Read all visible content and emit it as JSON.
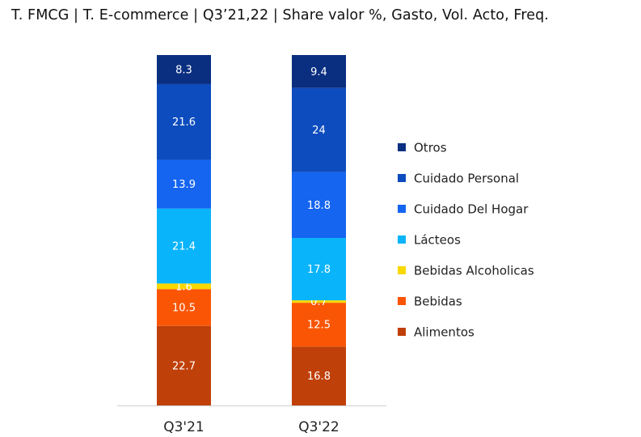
{
  "chart_data": {
    "type": "bar",
    "stacked": true,
    "title": "T.  FMCG | T. E-commerce | Q3’21,22 | Share valor %, Gasto, Vol. Acto, Freq.",
    "categories": [
      "Q3'21",
      "Q3'22"
    ],
    "ylim": [
      0,
      100
    ],
    "legend_position": "right",
    "series": [
      {
        "name": "Alimentos",
        "color": "#c0400a",
        "values": [
          22.7,
          16.8
        ]
      },
      {
        "name": "Bebidas",
        "color": "#fa5505",
        "values": [
          10.5,
          12.5
        ]
      },
      {
        "name": "Bebidas Alcoholicas",
        "color": "#f8d800",
        "values": [
          1.6,
          0.7
        ]
      },
      {
        "name": "Lácteos",
        "color": "#0ab4fa",
        "values": [
          21.4,
          17.8
        ]
      },
      {
        "name": "Cuidado Del Hogar",
        "color": "#1565f0",
        "values": [
          13.9,
          18.8
        ]
      },
      {
        "name": "Cuidado Personal",
        "color": "#0d4cbe",
        "values": [
          21.6,
          24
        ]
      },
      {
        "name": "Otros",
        "color": "#0a2f80",
        "values": [
          8.3,
          9.4
        ]
      }
    ]
  }
}
